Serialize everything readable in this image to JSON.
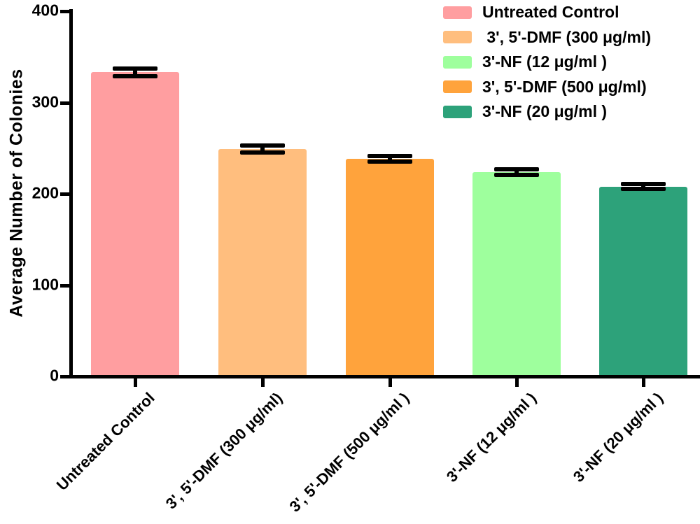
{
  "chart_data": {
    "type": "bar",
    "title": "",
    "ylabel": "Average Number of Colonies",
    "xlabel": "",
    "ylim": [
      0,
      400
    ],
    "yticks": [
      0,
      100,
      200,
      300,
      400
    ],
    "ytick_labels": [
      "0",
      "100",
      "200",
      "300",
      "400"
    ],
    "grid": false,
    "legend_position": "top-right",
    "categories": [
      "Untreated Control",
      "3', 5'-DMF (300 μg/ml)",
      "3', 5'-DMF (500 μg/ml )",
      "3'-NF (12 μg/ml )",
      "3'-NF (20 μg/ml )"
    ],
    "values": [
      333,
      249,
      238,
      224,
      208
    ],
    "errors": [
      4,
      4,
      3,
      3,
      3
    ],
    "bar_colors": [
      "#FF9EA0",
      "#FFBE7E",
      "#FFA33C",
      "#9EFF9D",
      "#2DA27A"
    ],
    "axis_color": "#000000",
    "legend": [
      {
        "label": "Untreated Control",
        "color": "#FF9EA0"
      },
      {
        "label": " 3', 5'-DMF (300 μg/ml)",
        "color": "#FFBE7E"
      },
      {
        "label": "3'-NF (12 μg/ml )",
        "color": "#9EFF9D"
      },
      {
        "label": "3', 5'-DMF (500 μg/ml)",
        "color": "#FFA33C"
      },
      {
        "label": "3'-NF (20 μg/ml )",
        "color": "#2DA27A"
      }
    ]
  }
}
